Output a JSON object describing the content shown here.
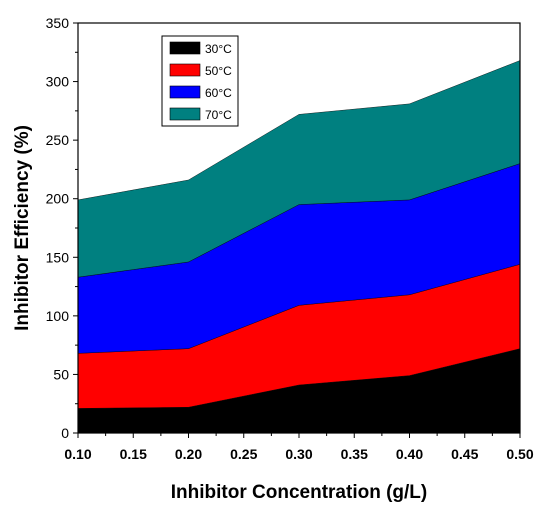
{
  "chart_data": {
    "type": "area",
    "stacked": true,
    "x": [
      0.1,
      0.2,
      0.3,
      0.4,
      0.5
    ],
    "x_ticks": [
      "0.10",
      "0.15",
      "0.20",
      "0.25",
      "0.30",
      "0.35",
      "0.40",
      "0.45",
      "0.50"
    ],
    "y_ticks": [
      "0",
      "50",
      "100",
      "150",
      "200",
      "250",
      "300",
      "350"
    ],
    "xlim": [
      0.1,
      0.5
    ],
    "ylim": [
      0,
      350
    ],
    "xlabel": "Inhibitor Concentration (g/L)",
    "ylabel": "Inhibitor Efficiency (%)",
    "legend_position": "top-left",
    "grid": false,
    "series": [
      {
        "name": "30°C",
        "color": "#000000",
        "values": [
          21,
          22,
          41,
          49,
          72
        ]
      },
      {
        "name": "50°C",
        "color": "#ff0000",
        "values": [
          47,
          50,
          68,
          69,
          72
        ]
      },
      {
        "name": "60°C",
        "color": "#0000ff",
        "values": [
          65,
          74,
          86,
          81,
          86
        ]
      },
      {
        "name": "70°C",
        "color": "#008080",
        "values": [
          66,
          70,
          77,
          82,
          88
        ]
      }
    ]
  }
}
